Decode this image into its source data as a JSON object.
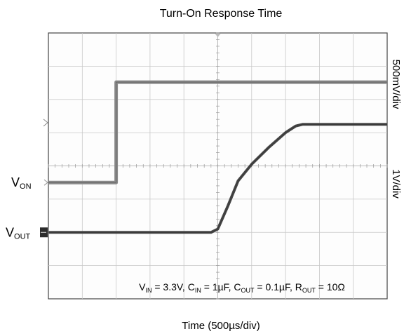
{
  "chart_data": {
    "type": "line",
    "title": "Turn-On Response Time",
    "xlabel": "Time (500µs/div)",
    "ylabel_right": [
      "500mV/div",
      "1V/div"
    ],
    "x_unit": "µs",
    "x_per_div": 500,
    "divisions": {
      "x": 10,
      "y": 8
    },
    "grid": true,
    "annotation": {
      "parts": [
        {
          "text": "V",
          "sub": "IN"
        },
        {
          "text": " = 3.3V, C",
          "sub": "IN"
        },
        {
          "text": " = 1µF, C",
          "sub": "OUT"
        },
        {
          "text": " = 0.1µF, R",
          "sub": "OUT"
        },
        {
          "text": " = 10Ω",
          "sub": ""
        }
      ]
    },
    "series": [
      {
        "name": "VON",
        "label_main": "V",
        "label_sub": "ON",
        "points_div": [
          [
            0,
            3.5
          ],
          [
            2.0,
            3.5
          ],
          [
            2.0,
            6.52
          ],
          [
            10,
            6.52
          ]
        ]
      },
      {
        "name": "VOUT",
        "label_main": "V",
        "label_sub": "OUT",
        "points_div": [
          [
            0,
            2.0
          ],
          [
            4.8,
            2.0
          ],
          [
            5.0,
            2.1
          ],
          [
            5.3,
            2.8
          ],
          [
            5.6,
            3.55
          ],
          [
            6.0,
            4.05
          ],
          [
            6.5,
            4.55
          ],
          [
            7.0,
            5.0
          ],
          [
            7.3,
            5.2
          ],
          [
            7.5,
            5.25
          ],
          [
            10,
            5.25
          ]
        ]
      }
    ]
  }
}
